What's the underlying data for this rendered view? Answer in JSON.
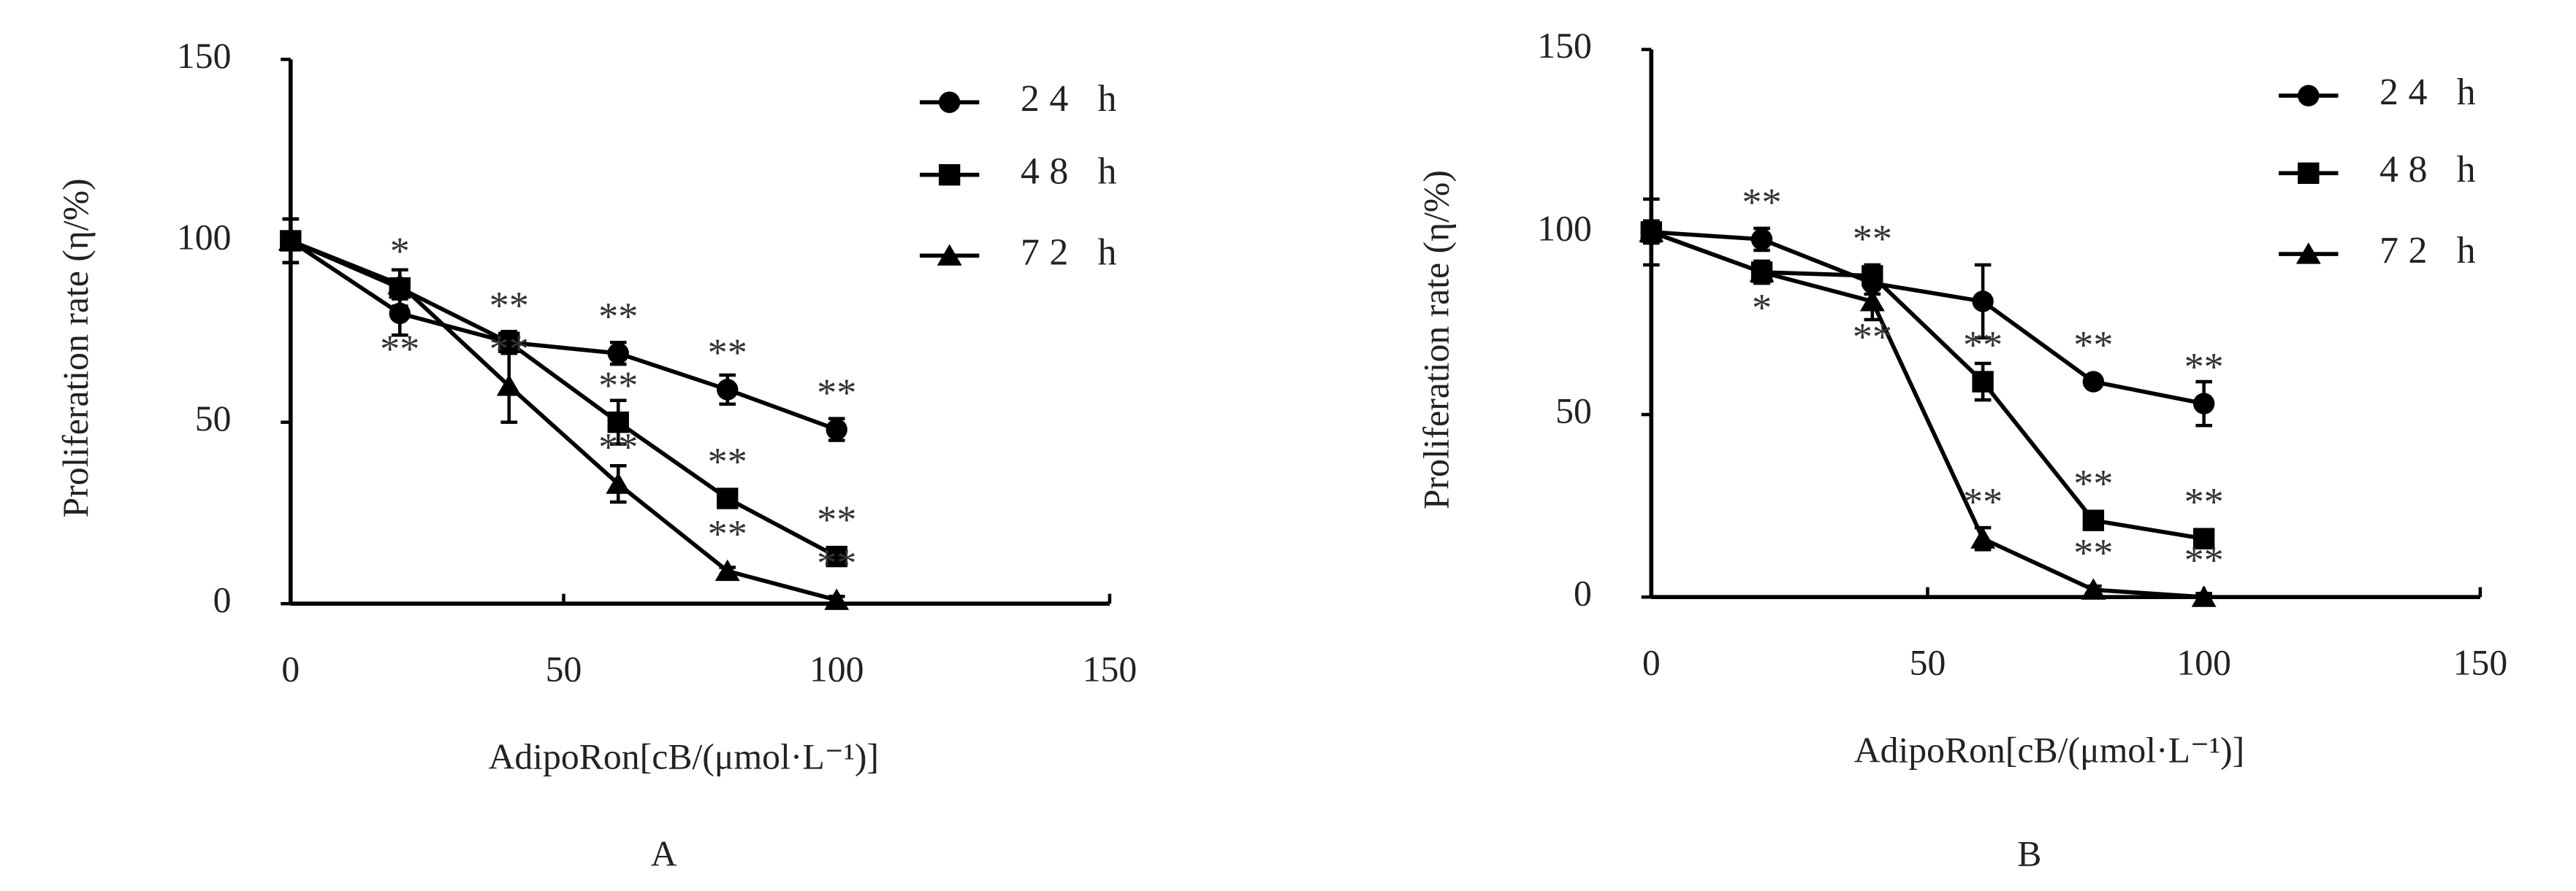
{
  "chart_data": [
    {
      "type": "line",
      "panel": "A",
      "x_label": "AdipoRon[cB/(μmol·L⁻¹)]",
      "y_label": "Proliferation rate (η/%)",
      "x": [
        0,
        20,
        40,
        60,
        80,
        100
      ],
      "xlim": [
        0,
        150
      ],
      "xticks": [
        0,
        50,
        100,
        150
      ],
      "ylim": [
        0,
        150
      ],
      "yticks": [
        0,
        50,
        100,
        150
      ],
      "legend": "upper right",
      "series": [
        {
          "name": "24 h",
          "color": "#000000",
          "marker": "circle",
          "values": [
            100,
            80,
            72,
            69,
            59,
            48
          ],
          "errors": [
            6,
            6,
            3,
            3,
            4,
            3
          ],
          "annotations": [
            null,
            "**",
            "**",
            "**",
            "**",
            "**"
          ]
        },
        {
          "name": "48 h",
          "color": "#000000",
          "marker": "square",
          "values": [
            100,
            87,
            72,
            50,
            29,
            13
          ],
          "errors": [
            6,
            5,
            3,
            6,
            2,
            2
          ],
          "annotations": [
            null,
            "*",
            null,
            "**",
            "**",
            "**"
          ]
        },
        {
          "name": "72 h",
          "color": "#000000",
          "marker": "triangle",
          "values": [
            100,
            88,
            60,
            33,
            9,
            1
          ],
          "errors": [
            6,
            4,
            10,
            5,
            1,
            1
          ],
          "annotations": [
            null,
            null,
            "**",
            "**",
            "**",
            "**"
          ]
        }
      ]
    },
    {
      "type": "line",
      "panel": "B",
      "x_label": "AdipoRon[cB/(μmol·L⁻¹)]",
      "y_label": "Proliferation rate (η/%)",
      "x": [
        0,
        20,
        40,
        60,
        80,
        100
      ],
      "xlim": [
        0,
        150
      ],
      "xticks": [
        0,
        50,
        100,
        150
      ],
      "ylim": [
        0,
        150
      ],
      "yticks": [
        0,
        50,
        100,
        150
      ],
      "legend": "upper right",
      "series": [
        {
          "name": "24 h",
          "color": "#000000",
          "marker": "circle",
          "values": [
            100,
            98,
            86,
            81,
            59,
            53
          ],
          "errors": [
            9,
            3,
            3,
            10,
            1,
            6
          ],
          "annotations": [
            null,
            "**",
            null,
            null,
            "**",
            "**"
          ]
        },
        {
          "name": "48 h",
          "color": "#000000",
          "marker": "square",
          "values": [
            100,
            89,
            88,
            59,
            21,
            16
          ],
          "errors": [
            3,
            3,
            3,
            5,
            2,
            2
          ],
          "annotations": [
            null,
            "*",
            "**",
            "**",
            "**",
            "**"
          ]
        },
        {
          "name": "72 h",
          "color": "#000000",
          "marker": "triangle",
          "values": [
            100,
            89,
            81,
            16,
            2,
            0
          ],
          "errors": [
            3,
            3,
            5,
            3,
            1,
            1
          ],
          "annotations": [
            null,
            null,
            "**",
            "**",
            "**",
            "**"
          ]
        }
      ]
    }
  ]
}
